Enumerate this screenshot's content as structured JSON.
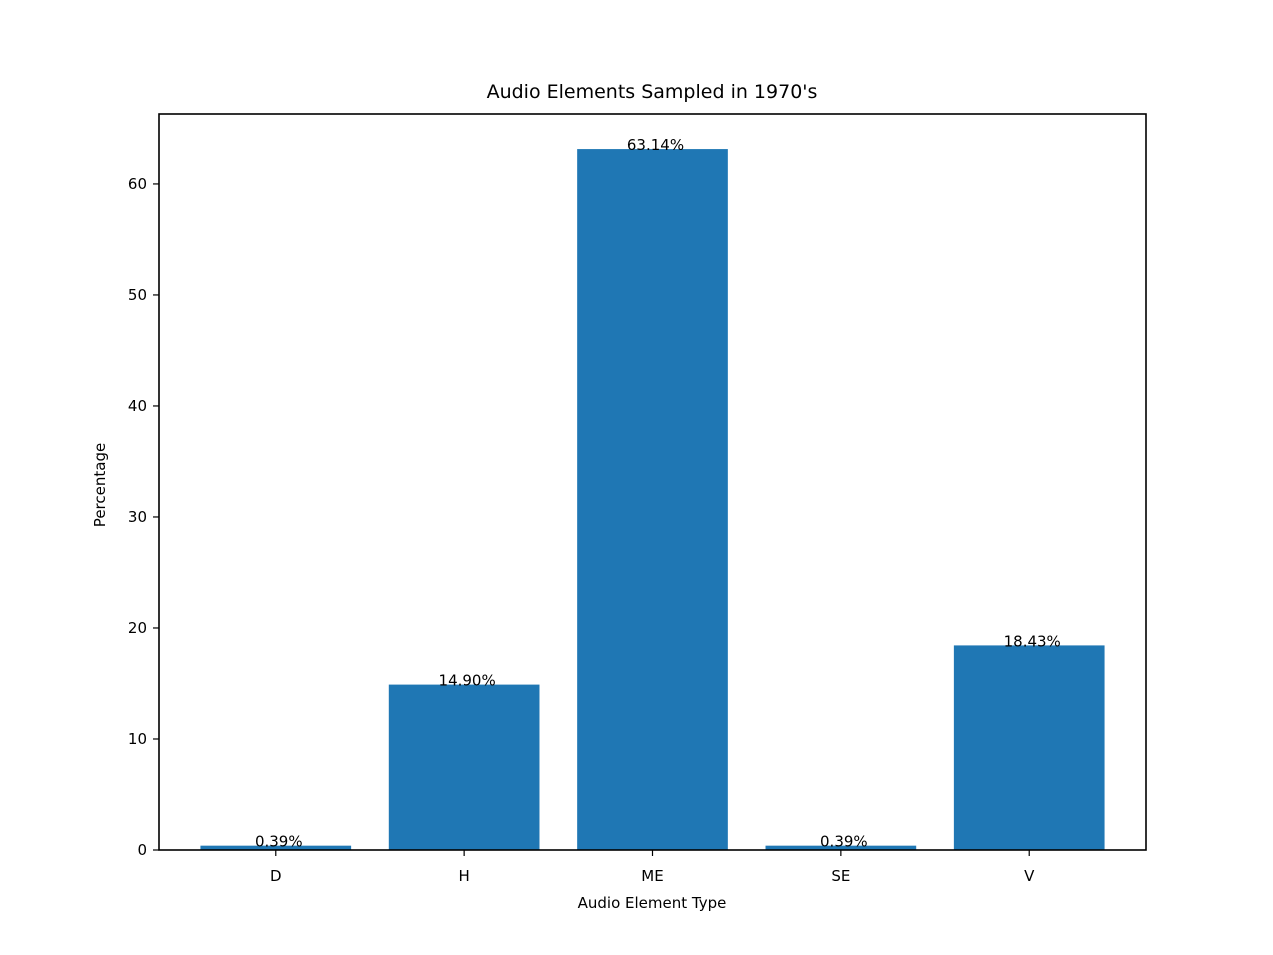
{
  "chart_data": {
    "type": "bar",
    "title": "Audio Elements Sampled in 1970's",
    "xlabel": "Audio Element Type",
    "ylabel": "Percentage",
    "categories": [
      "D",
      "H",
      "ME",
      "SE",
      "V"
    ],
    "values": [
      0.39,
      14.9,
      63.14,
      0.39,
      18.43
    ],
    "data_labels": [
      "0.39%",
      "14.90%",
      "63.14%",
      "0.39%",
      "18.43%"
    ],
    "yticks": [
      0,
      10,
      20,
      30,
      40,
      50,
      60
    ],
    "ylim": [
      0,
      66.3
    ],
    "grid": false,
    "legend": "none",
    "bar_color": "#1f77b4"
  }
}
